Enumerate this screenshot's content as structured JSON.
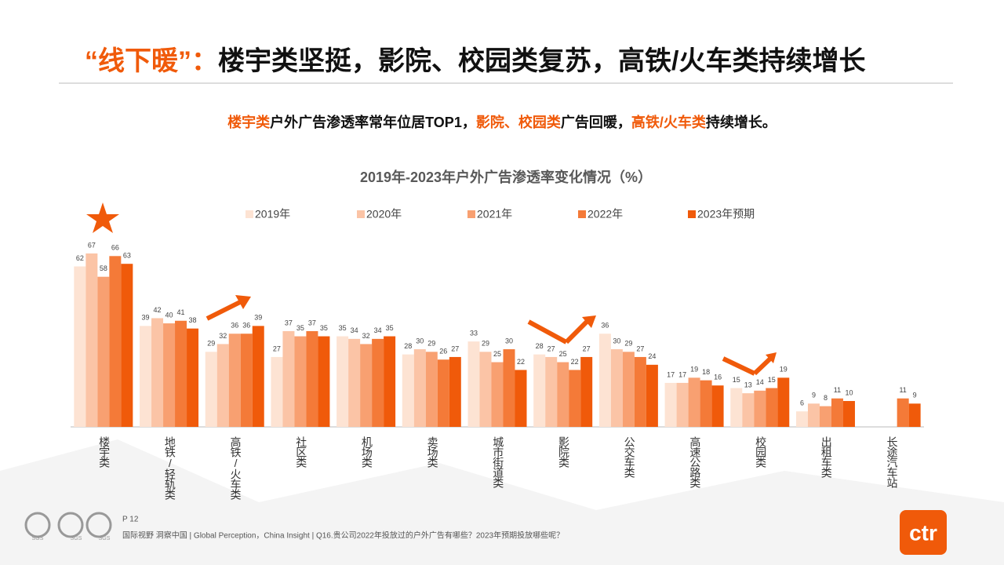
{
  "header": {
    "title": [
      {
        "text": "“线下暖”：",
        "emphasis": true
      },
      {
        "text": "楼宇类坚挺，影院、校园类复苏，高铁/火车类持续增长",
        "emphasis": false
      }
    ],
    "subtitle": [
      {
        "text": "楼宇类",
        "emphasis": true
      },
      {
        "text": "户外广告渗透率常年位居TOP1，",
        "emphasis": false
      },
      {
        "text": "影院、校园类",
        "emphasis": true
      },
      {
        "text": "广告回暖，",
        "emphasis": false
      },
      {
        "text": "高铁/火车类",
        "emphasis": true
      },
      {
        "text": "持续增长。",
        "emphasis": false
      }
    ]
  },
  "chart_data": {
    "type": "bar",
    "title": "2019年-2023年户外广告渗透率变化情况（%）",
    "categories": [
      "楼宇类",
      "地铁/轻轨类",
      "高铁/火车类",
      "社区类",
      "机场类",
      "卖场类",
      "城市街道类",
      "影院类",
      "公交车类",
      "高速公路类",
      "校园类",
      "出租车类",
      "长途汽车站"
    ],
    "series": [
      {
        "name": "2019年",
        "color": "#fde3d3",
        "values": [
          62,
          39,
          29,
          27,
          35,
          28,
          33,
          28,
          36,
          17,
          15,
          6,
          null
        ]
      },
      {
        "name": "2020年",
        "color": "#fbc4a6",
        "values": [
          67,
          42,
          32,
          37,
          34,
          30,
          29,
          27,
          30,
          17,
          13,
          9,
          null
        ]
      },
      {
        "name": "2021年",
        "color": "#f8a071",
        "values": [
          58,
          40,
          36,
          35,
          32,
          29,
          25,
          25,
          29,
          19,
          14,
          8,
          null
        ]
      },
      {
        "name": "2022年",
        "color": "#f47a38",
        "values": [
          66,
          41,
          36,
          37,
          34,
          26,
          30,
          22,
          27,
          18,
          15,
          11,
          11
        ]
      },
      {
        "name": "2023年预期",
        "color": "#f05a0a",
        "values": [
          63,
          38,
          39,
          35,
          35,
          27,
          22,
          27,
          24,
          16,
          19,
          10,
          9
        ]
      }
    ],
    "legend": "top"
  },
  "footer": {
    "page": "P 12",
    "note": "国际视野  洞察中国 |  Global Perception，China Insight | Q16.贵公司2022年投放过的户外广告有哪些？2023年预期投放哪些呢？",
    "badge": "SGS",
    "logo": "ctr"
  }
}
